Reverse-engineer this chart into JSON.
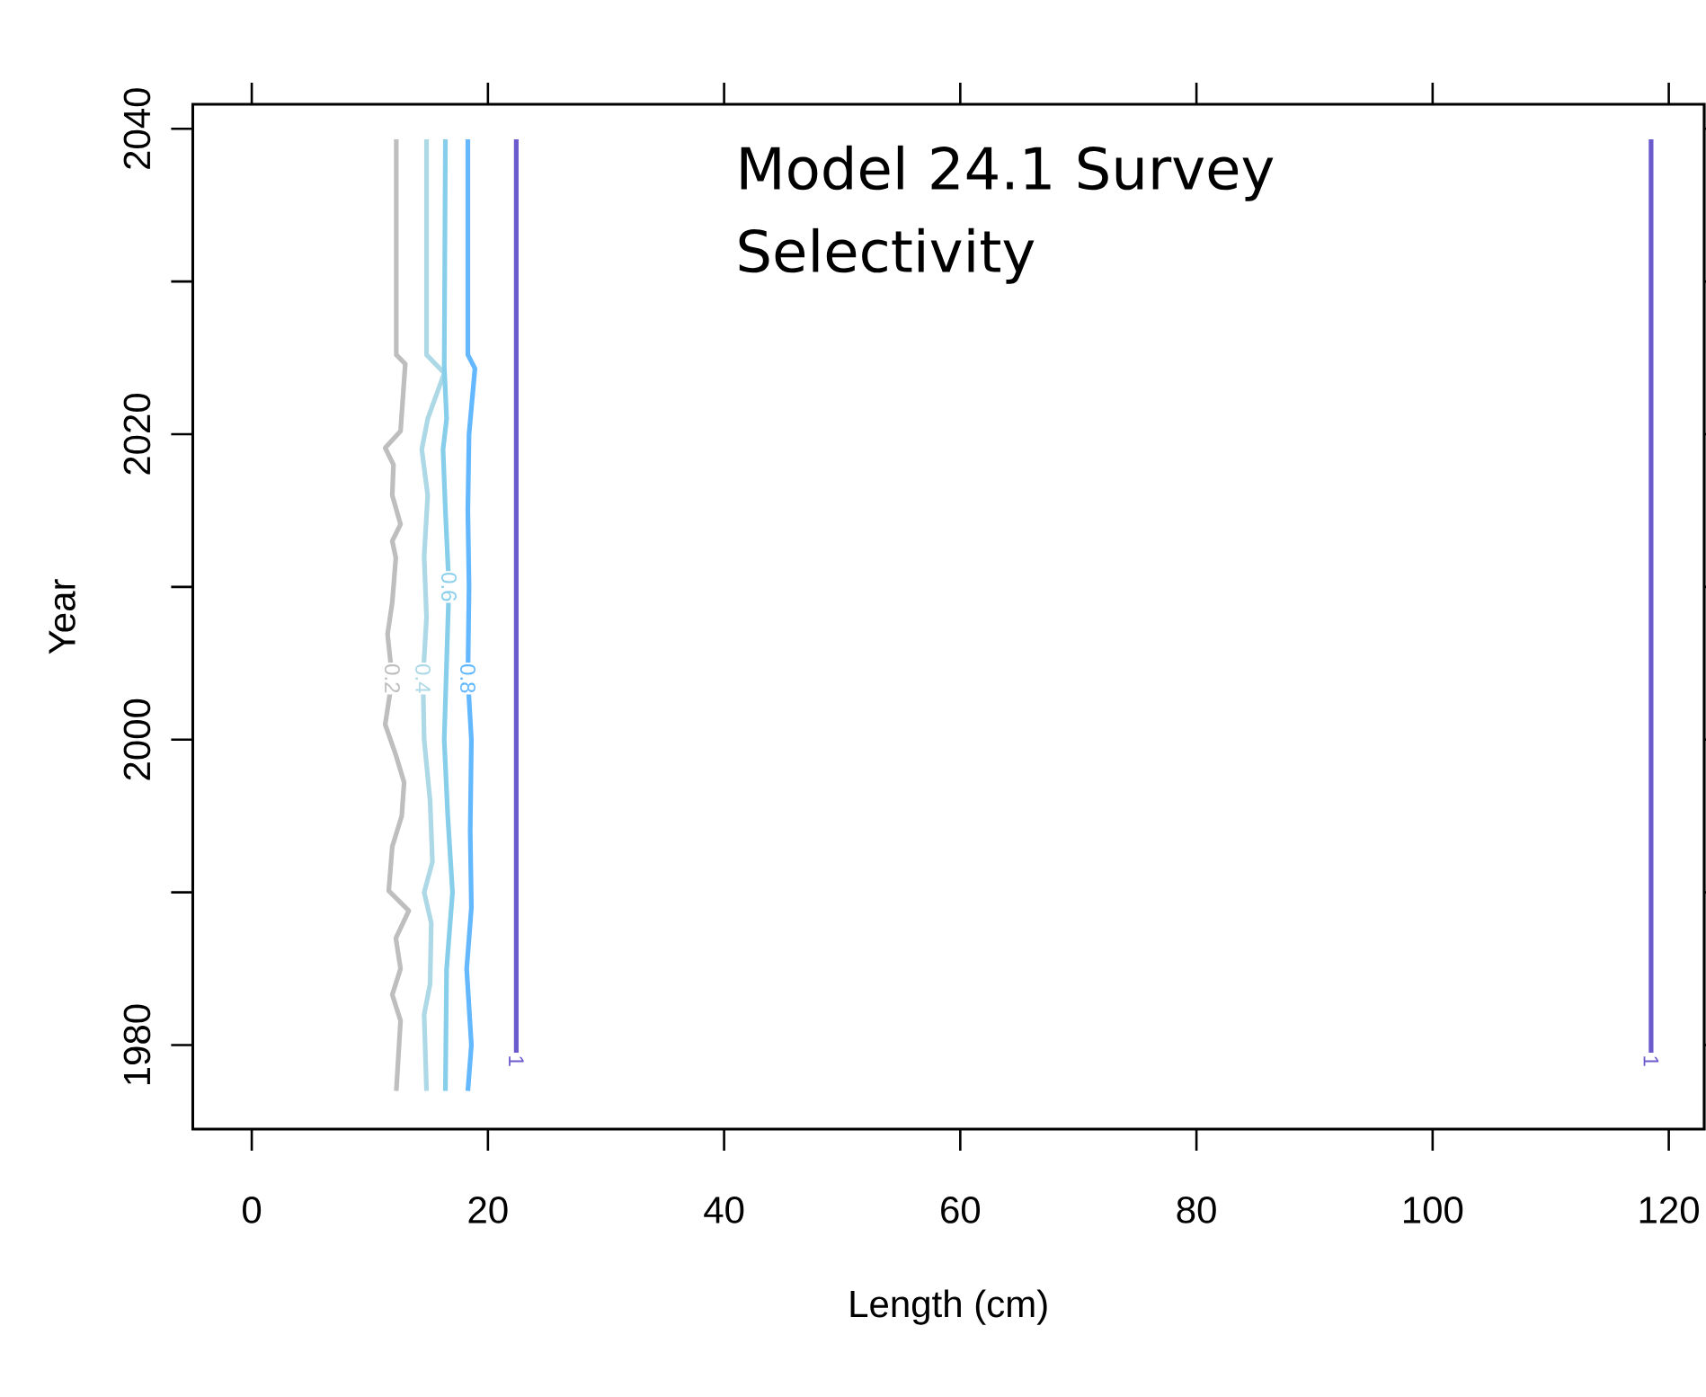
{
  "chart_data": {
    "type": "line",
    "title": "Model 24.1 Survey Selectivity",
    "xlabel": "Length (cm)",
    "ylabel": "Year",
    "xlim": [
      -5,
      123
    ],
    "ylim": [
      1974.5,
      2041.6
    ],
    "xticks": [
      0,
      20,
      40,
      60,
      80,
      100,
      120
    ],
    "yticks": [
      1980,
      {
        "value": 1990,
        "label": null
      },
      2000,
      {
        "value": 2010,
        "label": null
      },
      2020,
      {
        "value": 2030,
        "label": null
      },
      2040
    ],
    "series": [
      {
        "name": "0.2",
        "color": "#bebebe",
        "x": [
          12.24,
          12.6,
          11.9,
          12.6,
          12.2,
          13.3,
          11.6,
          11.9,
          12.7,
          12.9,
          12.2,
          11.3,
          11.9,
          11.5,
          11.9,
          12.2,
          11.9,
          12.6,
          11.9,
          12.0,
          11.3,
          12.6,
          13.0,
          12.24,
          12.24
        ],
        "values": [
          1977,
          1981.6,
          1983.3,
          1985,
          1987,
          1988.8,
          1990.1,
          1993,
          1995,
          1997.2,
          1999,
          2001,
          2004,
          2006.9,
          2009,
          2011.9,
          2013,
          2014.1,
          2016,
          2018,
          2019.1,
          2020.2,
          2024.6,
          2025.2,
          2039.3
        ]
      },
      {
        "name": "0.4",
        "color": "#add8e6",
        "x": [
          14.8,
          14.6,
          15.1,
          15.2,
          14.6,
          15.3,
          15.1,
          14.6,
          14.5,
          14.8,
          14.6,
          14.9,
          14.4,
          14.9,
          16.3,
          14.8,
          14.8
        ],
        "values": [
          1977,
          1982,
          1984,
          1988,
          1990,
          1992,
          1996,
          2000,
          2004,
          2008,
          2012,
          2016,
          2019,
          2021,
          2024,
          2025.2,
          2039.3
        ]
      },
      {
        "name": "0.6",
        "color": "#87ceeb",
        "x": [
          16.4,
          16.5,
          17.0,
          16.6,
          16.3,
          16.5,
          16.7,
          16.4,
          16.2,
          16.5,
          16.3,
          16.4
        ],
        "values": [
          1977,
          1985,
          1990,
          1995,
          2000,
          2005,
          2010,
          2015,
          2019,
          2021,
          2024.5,
          2039.3
        ]
      },
      {
        "name": "0.8",
        "color": "#63b8ff",
        "x": [
          18.3,
          18.6,
          18.2,
          18.6,
          18.5,
          18.6,
          18.3,
          18.4,
          18.3,
          18.4,
          18.9,
          18.3,
          18.3
        ],
        "values": [
          1977,
          1980,
          1985,
          1989,
          1994,
          2000,
          2004,
          2010,
          2015,
          2020,
          2024.3,
          2025.2,
          2039.3
        ]
      },
      {
        "name": "1",
        "color": "#6a5acd",
        "x": [
          22.4,
          22.4
        ],
        "values": [
          1979.5,
          2039.3
        ]
      },
      {
        "name": "1",
        "color": "#6a5acd",
        "x": [
          118.5,
          118.5
        ],
        "values": [
          1979.5,
          2039.3
        ]
      }
    ]
  }
}
